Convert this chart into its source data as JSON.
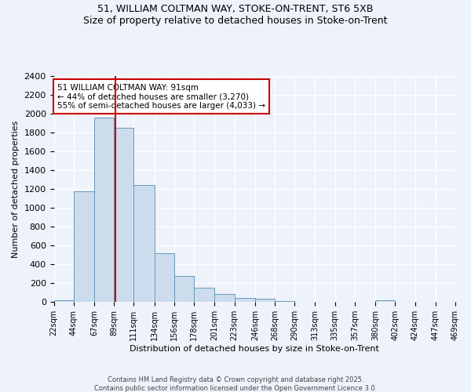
{
  "title_line1": "51, WILLIAM COLTMAN WAY, STOKE-ON-TRENT, ST6 5XB",
  "title_line2": "Size of property relative to detached houses in Stoke-on-Trent",
  "xlabel": "Distribution of detached houses by size in Stoke-on-Trent",
  "ylabel": "Number of detached properties",
  "bar_values": [
    20,
    1175,
    1960,
    1850,
    1240,
    520,
    275,
    155,
    85,
    45,
    35,
    15,
    5,
    2,
    1,
    1,
    20,
    1,
    1,
    1
  ],
  "bin_edges": [
    22,
    44,
    67,
    89,
    111,
    134,
    156,
    178,
    201,
    223,
    246,
    268,
    290,
    313,
    335,
    357,
    380,
    402,
    424,
    447,
    469
  ],
  "tick_labels": [
    "22sqm",
    "44sqm",
    "67sqm",
    "89sqm",
    "111sqm",
    "134sqm",
    "156sqm",
    "178sqm",
    "201sqm",
    "223sqm",
    "246sqm",
    "268sqm",
    "290sqm",
    "313sqm",
    "335sqm",
    "357sqm",
    "380sqm",
    "402sqm",
    "424sqm",
    "447sqm",
    "469sqm"
  ],
  "property_size": 91,
  "annotation_title": "51 WILLIAM COLTMAN WAY: 91sqm",
  "annotation_line1": "← 44% of detached houses are smaller (3,270)",
  "annotation_line2": "55% of semi-detached houses are larger (4,033) →",
  "bar_color": "#ccdcec",
  "bar_edge_color": "#6699bb",
  "red_line_color": "#cc0000",
  "annotation_box_edge": "#cc0000",
  "background_color": "#eef2fa",
  "grid_color": "#ffffff",
  "ylim": [
    0,
    2400
  ],
  "yticks": [
    0,
    200,
    400,
    600,
    800,
    1000,
    1200,
    1400,
    1600,
    1800,
    2000,
    2200,
    2400
  ],
  "footer_line1": "Contains HM Land Registry data © Crown copyright and database right 2025.",
  "footer_line2": "Contains public sector information licensed under the Open Government Licence 3.0."
}
